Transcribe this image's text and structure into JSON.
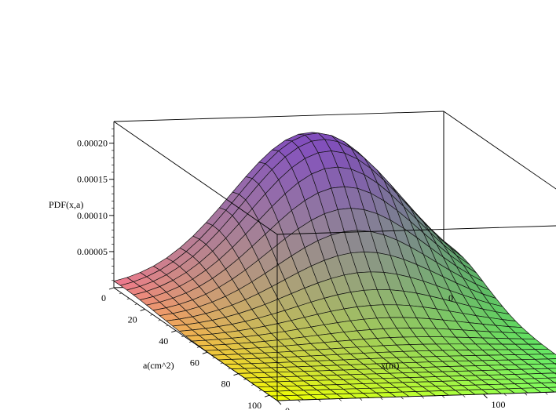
{
  "chart_data": {
    "type": "surface3d",
    "title": "",
    "zlabel": "PDF(x,a)",
    "alabel": "a(cm^2)",
    "xlabel": "x(m)",
    "a_range": [
      0,
      105
    ],
    "x_range": [
      0,
      160
    ],
    "z_range": [
      0,
      0.00023
    ],
    "z_ticks": [
      {
        "value": 5e-05,
        "label": "0.00005"
      },
      {
        "value": 0.0001,
        "label": "0.00010"
      },
      {
        "value": 0.00015,
        "label": "0.00015"
      },
      {
        "value": 0.0002,
        "label": "0.00020"
      }
    ],
    "a_ticks": [
      {
        "value": 0,
        "label": "0"
      },
      {
        "value": 20,
        "label": "20"
      },
      {
        "value": 40,
        "label": "40"
      },
      {
        "value": 60,
        "label": "60"
      },
      {
        "value": 80,
        "label": "80"
      },
      {
        "value": 100,
        "label": "100"
      }
    ],
    "x_ticks": [
      {
        "value": 0,
        "label": "0"
      },
      {
        "value": 100,
        "label": "100"
      }
    ],
    "peak": {
      "a": 5,
      "x": 95,
      "z": 0.000212
    },
    "spread": {
      "a": 22,
      "x": 38
    },
    "mesh": {
      "a_lines": 25,
      "x_lines": 25
    },
    "colors": {
      "line": "#111111",
      "box": "#000000"
    }
  }
}
